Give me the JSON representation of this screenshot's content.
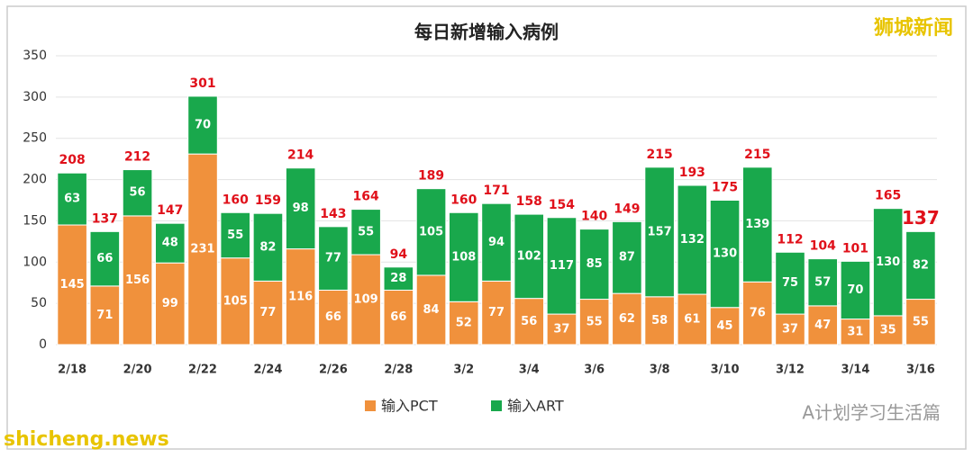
{
  "chart_data": {
    "type": "stacked-bar",
    "title": "每日新增输入病例",
    "categories": [
      "2/18",
      null,
      "2/20",
      null,
      "2/22",
      null,
      "2/24",
      null,
      "2/26",
      null,
      "2/28",
      null,
      "3/2",
      null,
      "3/4",
      null,
      "3/6",
      null,
      "3/8",
      null,
      "3/10",
      null,
      "3/12",
      null,
      "3/14",
      null,
      "3/16"
    ],
    "series": [
      {
        "name": "输入PCT",
        "color": "#f0913c",
        "values": [
          145,
          71,
          156,
          99,
          231,
          105,
          77,
          116,
          66,
          109,
          66,
          84,
          52,
          77,
          56,
          37,
          55,
          62,
          58,
          61,
          45,
          76,
          37,
          47,
          31,
          35,
          55
        ]
      },
      {
        "name": "输入ART",
        "color": "#19a84c",
        "values": [
          63,
          66,
          56,
          48,
          70,
          55,
          82,
          98,
          77,
          55,
          28,
          105,
          108,
          94,
          102,
          117,
          85,
          87,
          157,
          132,
          130,
          139,
          75,
          57,
          70,
          130,
          82
        ]
      }
    ],
    "totals": [
      208,
      137,
      212,
      147,
      301,
      160,
      159,
      214,
      143,
      164,
      94,
      189,
      160,
      171,
      158,
      154,
      140,
      149,
      215,
      193,
      175,
      215,
      112,
      104,
      101,
      165,
      137
    ],
    "ylim": [
      0,
      350
    ],
    "yticks": [
      0,
      50,
      100,
      150,
      200,
      250,
      300,
      350
    ],
    "grid": true,
    "legend": "bottom"
  },
  "watermarks": {
    "top_right": "狮城新闻",
    "bottom_right": "A计划学习生活篇",
    "bottom_left": "shicheng.news"
  }
}
